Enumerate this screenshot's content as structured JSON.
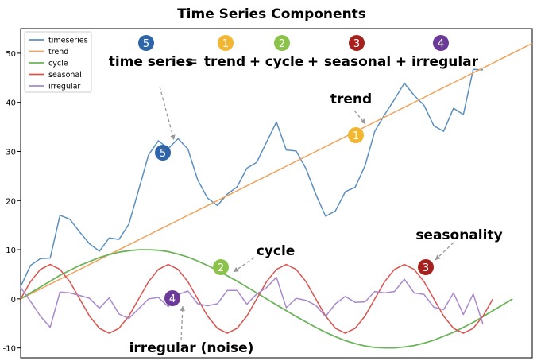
{
  "chart_data": {
    "type": "line",
    "title": "Time Series Components",
    "xlabel": "",
    "ylabel": "",
    "xlim": [
      0,
      52
    ],
    "ylim": [
      -12,
      55
    ],
    "y_ticks": [
      -10,
      0,
      10,
      20,
      30,
      40,
      50
    ],
    "grid": false,
    "legend_position": "top-left",
    "x": [
      0,
      1,
      2,
      3,
      4,
      5,
      6,
      7,
      8,
      9,
      10,
      11,
      12,
      13,
      14,
      15,
      16,
      17,
      18,
      19,
      20,
      21,
      22,
      23,
      24,
      25,
      26,
      27,
      28,
      29,
      30,
      31,
      32,
      33,
      34,
      35,
      36,
      37,
      38,
      39,
      40,
      41,
      42,
      43,
      44,
      45,
      46,
      47,
      48,
      49,
      50,
      51,
      52
    ],
    "series": [
      {
        "name": "timeseries",
        "color": "#5b8fc0",
        "values": [
          2.5,
          6.8,
          8.2,
          8.3,
          17.0,
          16.2,
          13.6,
          11.2,
          9.7,
          12.4,
          12.1,
          15.2,
          22.2,
          29.3,
          32.2,
          30.6,
          32.6,
          30.5,
          24.2,
          20.5,
          19.0,
          21.3,
          22.8,
          26.6,
          27.8,
          31.9,
          36.0,
          30.3,
          30.1,
          26.5,
          21.3,
          16.8,
          17.9,
          21.8,
          22.7,
          27.1,
          34.1,
          37.5,
          40.6,
          43.9,
          41.4,
          39.4,
          35.2,
          34.1,
          38.8,
          37.5,
          46.7,
          46.6,
          null,
          null,
          null,
          null,
          null
        ]
      },
      {
        "name": "trend",
        "color": "#f0a35b",
        "values": [
          0,
          1,
          2,
          3,
          4,
          5,
          6,
          7,
          8,
          9,
          10,
          11,
          12,
          13,
          14,
          15,
          16,
          17,
          18,
          19,
          20,
          21,
          22,
          23,
          24,
          25,
          26,
          27,
          28,
          29,
          30,
          31,
          32,
          33,
          34,
          35,
          36,
          37,
          38,
          39,
          40,
          41,
          42,
          43,
          44,
          45,
          46,
          47,
          48,
          49,
          50,
          51,
          52
        ]
      },
      {
        "name": "cycle",
        "color": "#6db35b",
        "values": [
          0.0,
          1.2,
          2.4,
          3.6,
          4.8,
          5.8,
          6.8,
          7.6,
          8.4,
          9.0,
          9.5,
          9.8,
          10.0,
          10.0,
          9.9,
          9.6,
          9.1,
          8.5,
          7.7,
          6.8,
          5.8,
          4.7,
          3.6,
          2.4,
          1.2,
          0.0,
          -1.2,
          -2.4,
          -3.6,
          -4.7,
          -5.8,
          -6.8,
          -7.7,
          -8.5,
          -9.1,
          -9.6,
          -9.9,
          -10.0,
          -10.0,
          -9.8,
          -9.5,
          -9.0,
          -8.4,
          -7.6,
          -6.8,
          -5.8,
          -4.8,
          -3.6,
          -2.4,
          -1.2,
          0.0,
          null,
          null
        ]
      },
      {
        "name": "seasonal",
        "color": "#d9534f",
        "values": [
          0.0,
          3.5,
          6.0,
          7.0,
          6.0,
          3.5,
          0.0,
          -3.5,
          -6.0,
          -7.0,
          -6.0,
          -3.5,
          0.0,
          3.5,
          6.0,
          7.0,
          6.0,
          3.5,
          0.0,
          -3.5,
          -6.0,
          -7.0,
          -6.0,
          -3.5,
          0.0,
          3.5,
          6.0,
          7.0,
          6.0,
          3.5,
          0.0,
          -3.5,
          -6.0,
          -7.0,
          -6.0,
          -3.5,
          0.0,
          3.5,
          6.0,
          7.0,
          6.0,
          3.5,
          0.0,
          -3.5,
          -6.0,
          -7.0,
          -6.0,
          -3.5,
          0.0,
          null,
          null,
          null,
          null
        ]
      },
      {
        "name": "irregular",
        "color": "#a989cb",
        "values": [
          2.3,
          -0.5,
          -3.5,
          -5.8,
          1.4,
          1.2,
          0.7,
          0.1,
          -1.9,
          0.2,
          -3.1,
          -4.0,
          -2.0,
          0.0,
          0.3,
          -1.6,
          0.9,
          1.6,
          -1.0,
          -1.4,
          -1.0,
          1.7,
          1.7,
          -1.1,
          1.0,
          2.3,
          4.4,
          -1.8,
          0.1,
          -0.3,
          -1.3,
          -3.6,
          -1.0,
          0.5,
          -0.7,
          -0.6,
          1.5,
          1.2,
          1.5,
          4.0,
          1.2,
          0.9,
          -1.7,
          -2.2,
          1.2,
          -3.2,
          1.0,
          -5.2,
          null,
          null,
          null,
          null,
          null
        ]
      }
    ],
    "annotations": {
      "equation": {
        "prefix": "time series",
        "eq": "=",
        "plus": "+",
        "terms": [
          {
            "number": "5",
            "label": "time series",
            "color": "#2e64a8"
          },
          {
            "number": "1",
            "label": "trend",
            "color": "#f2b632"
          },
          {
            "number": "2",
            "label": "cycle",
            "color": "#8bc34a"
          },
          {
            "number": "3",
            "label": "seasonal",
            "color": "#a6201d"
          },
          {
            "number": "4",
            "label": "irregular",
            "color": "#6b3a99"
          }
        ]
      },
      "callouts": [
        {
          "id": "timeseries",
          "number": "5",
          "label": "",
          "color": "#2e64a8"
        },
        {
          "id": "trend",
          "number": "1",
          "label": "trend",
          "color": "#f2b632"
        },
        {
          "id": "cycle",
          "number": "2",
          "label": "cycle",
          "color": "#8bc34a"
        },
        {
          "id": "seasonality",
          "number": "3",
          "label": "seasonality",
          "color": "#a6201d"
        },
        {
          "id": "irregular",
          "number": "4",
          "label": "irregular (noise)",
          "color": "#6b3a99"
        }
      ]
    }
  }
}
